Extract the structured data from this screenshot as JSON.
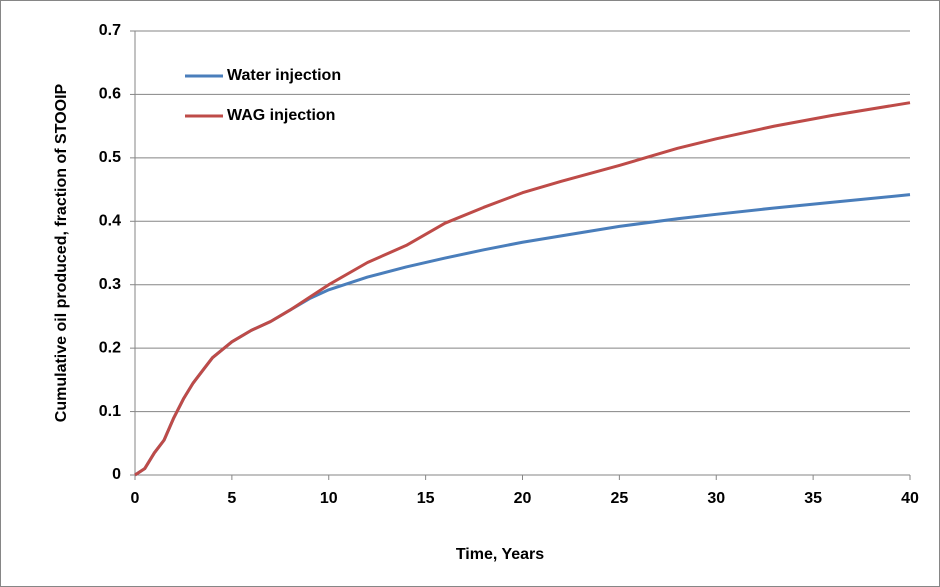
{
  "chart_data": {
    "type": "line",
    "x_label": "Time, Years",
    "y_label": "Cumulative oil produced, fraction of STOOIP",
    "xlim": [
      0,
      40
    ],
    "xticks": [
      0,
      5,
      10,
      15,
      20,
      25,
      30,
      35,
      40
    ],
    "ylim": [
      0,
      0.7
    ],
    "yticks": [
      0,
      0.1,
      0.2,
      0.3,
      0.4,
      0.5,
      0.6,
      0.7
    ],
    "grid": true,
    "legend": "upper-left",
    "series": [
      {
        "name": "Water injection",
        "color": "#4a7ebb",
        "x": [
          0,
          0.5,
          1,
          1.5,
          2,
          2.5,
          3,
          3.5,
          4,
          5,
          6,
          7,
          8,
          9,
          10,
          12,
          14,
          16,
          18,
          20,
          22,
          25,
          28,
          30,
          33,
          36,
          40
        ],
        "values": [
          0,
          0.01,
          0.035,
          0.055,
          0.09,
          0.12,
          0.145,
          0.165,
          0.185,
          0.21,
          0.228,
          0.242,
          0.26,
          0.278,
          0.292,
          0.312,
          0.328,
          0.342,
          0.355,
          0.367,
          0.377,
          0.392,
          0.404,
          0.411,
          0.421,
          0.43,
          0.442
        ]
      },
      {
        "name": "WAG injection",
        "color": "#be4b48",
        "x": [
          0,
          0.5,
          1,
          1.5,
          2,
          2.5,
          3,
          3.5,
          4,
          5,
          6,
          7,
          8,
          9,
          10,
          12,
          14,
          16,
          18,
          20,
          22,
          25,
          28,
          30,
          33,
          36,
          40
        ],
        "values": [
          0,
          0.01,
          0.035,
          0.055,
          0.09,
          0.12,
          0.145,
          0.165,
          0.185,
          0.21,
          0.228,
          0.242,
          0.26,
          0.28,
          0.3,
          0.335,
          0.362,
          0.397,
          0.422,
          0.445,
          0.463,
          0.488,
          0.515,
          0.53,
          0.55,
          0.567,
          0.587
        ]
      }
    ]
  }
}
